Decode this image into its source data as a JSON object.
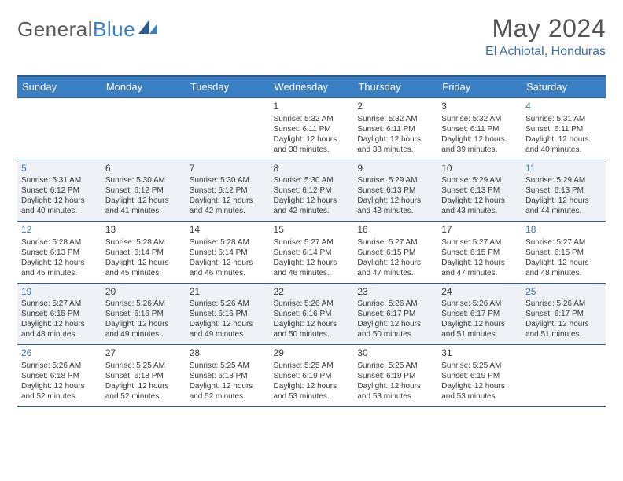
{
  "brand": {
    "word1": "General",
    "word2": "Blue"
  },
  "title": "May 2024",
  "location": "El Achiotal, Honduras",
  "colors": {
    "header_bg": "#3b7fc4",
    "header_border": "#2b5d8f",
    "weekend_text": "#3b6fa8",
    "shade_bg": "#eef2f6",
    "text": "#3a3a3a",
    "white": "#ffffff"
  },
  "days_of_week": [
    "Sunday",
    "Monday",
    "Tuesday",
    "Wednesday",
    "Thursday",
    "Friday",
    "Saturday"
  ],
  "weeks": [
    {
      "shaded": false,
      "cells": [
        {
          "empty": true
        },
        {
          "empty": true
        },
        {
          "empty": true
        },
        {
          "day": "1",
          "sunrise": "5:32 AM",
          "sunset": "6:11 PM",
          "dl_h": "12",
          "dl_m": "38"
        },
        {
          "day": "2",
          "sunrise": "5:32 AM",
          "sunset": "6:11 PM",
          "dl_h": "12",
          "dl_m": "38"
        },
        {
          "day": "3",
          "sunrise": "5:32 AM",
          "sunset": "6:11 PM",
          "dl_h": "12",
          "dl_m": "39"
        },
        {
          "day": "4",
          "sunrise": "5:31 AM",
          "sunset": "6:11 PM",
          "dl_h": "12",
          "dl_m": "40"
        }
      ]
    },
    {
      "shaded": true,
      "cells": [
        {
          "day": "5",
          "sunrise": "5:31 AM",
          "sunset": "6:12 PM",
          "dl_h": "12",
          "dl_m": "40"
        },
        {
          "day": "6",
          "sunrise": "5:30 AM",
          "sunset": "6:12 PM",
          "dl_h": "12",
          "dl_m": "41"
        },
        {
          "day": "7",
          "sunrise": "5:30 AM",
          "sunset": "6:12 PM",
          "dl_h": "12",
          "dl_m": "42"
        },
        {
          "day": "8",
          "sunrise": "5:30 AM",
          "sunset": "6:12 PM",
          "dl_h": "12",
          "dl_m": "42"
        },
        {
          "day": "9",
          "sunrise": "5:29 AM",
          "sunset": "6:13 PM",
          "dl_h": "12",
          "dl_m": "43"
        },
        {
          "day": "10",
          "sunrise": "5:29 AM",
          "sunset": "6:13 PM",
          "dl_h": "12",
          "dl_m": "43"
        },
        {
          "day": "11",
          "sunrise": "5:29 AM",
          "sunset": "6:13 PM",
          "dl_h": "12",
          "dl_m": "44"
        }
      ]
    },
    {
      "shaded": false,
      "cells": [
        {
          "day": "12",
          "sunrise": "5:28 AM",
          "sunset": "6:13 PM",
          "dl_h": "12",
          "dl_m": "45"
        },
        {
          "day": "13",
          "sunrise": "5:28 AM",
          "sunset": "6:14 PM",
          "dl_h": "12",
          "dl_m": "45"
        },
        {
          "day": "14",
          "sunrise": "5:28 AM",
          "sunset": "6:14 PM",
          "dl_h": "12",
          "dl_m": "46"
        },
        {
          "day": "15",
          "sunrise": "5:27 AM",
          "sunset": "6:14 PM",
          "dl_h": "12",
          "dl_m": "46"
        },
        {
          "day": "16",
          "sunrise": "5:27 AM",
          "sunset": "6:15 PM",
          "dl_h": "12",
          "dl_m": "47"
        },
        {
          "day": "17",
          "sunrise": "5:27 AM",
          "sunset": "6:15 PM",
          "dl_h": "12",
          "dl_m": "47"
        },
        {
          "day": "18",
          "sunrise": "5:27 AM",
          "sunset": "6:15 PM",
          "dl_h": "12",
          "dl_m": "48"
        }
      ]
    },
    {
      "shaded": true,
      "cells": [
        {
          "day": "19",
          "sunrise": "5:27 AM",
          "sunset": "6:15 PM",
          "dl_h": "12",
          "dl_m": "48"
        },
        {
          "day": "20",
          "sunrise": "5:26 AM",
          "sunset": "6:16 PM",
          "dl_h": "12",
          "dl_m": "49"
        },
        {
          "day": "21",
          "sunrise": "5:26 AM",
          "sunset": "6:16 PM",
          "dl_h": "12",
          "dl_m": "49"
        },
        {
          "day": "22",
          "sunrise": "5:26 AM",
          "sunset": "6:16 PM",
          "dl_h": "12",
          "dl_m": "50"
        },
        {
          "day": "23",
          "sunrise": "5:26 AM",
          "sunset": "6:17 PM",
          "dl_h": "12",
          "dl_m": "50"
        },
        {
          "day": "24",
          "sunrise": "5:26 AM",
          "sunset": "6:17 PM",
          "dl_h": "12",
          "dl_m": "51"
        },
        {
          "day": "25",
          "sunrise": "5:26 AM",
          "sunset": "6:17 PM",
          "dl_h": "12",
          "dl_m": "51"
        }
      ]
    },
    {
      "shaded": false,
      "cells": [
        {
          "day": "26",
          "sunrise": "5:26 AM",
          "sunset": "6:18 PM",
          "dl_h": "12",
          "dl_m": "52"
        },
        {
          "day": "27",
          "sunrise": "5:25 AM",
          "sunset": "6:18 PM",
          "dl_h": "12",
          "dl_m": "52"
        },
        {
          "day": "28",
          "sunrise": "5:25 AM",
          "sunset": "6:18 PM",
          "dl_h": "12",
          "dl_m": "52"
        },
        {
          "day": "29",
          "sunrise": "5:25 AM",
          "sunset": "6:19 PM",
          "dl_h": "12",
          "dl_m": "53"
        },
        {
          "day": "30",
          "sunrise": "5:25 AM",
          "sunset": "6:19 PM",
          "dl_h": "12",
          "dl_m": "53"
        },
        {
          "day": "31",
          "sunrise": "5:25 AM",
          "sunset": "6:19 PM",
          "dl_h": "12",
          "dl_m": "53"
        },
        {
          "empty": true
        }
      ]
    }
  ],
  "labels": {
    "sunrise": "Sunrise:",
    "sunset": "Sunset:",
    "daylight1": "Daylight:",
    "hours_word": "hours",
    "and_word": "and",
    "minutes_word": "minutes."
  }
}
